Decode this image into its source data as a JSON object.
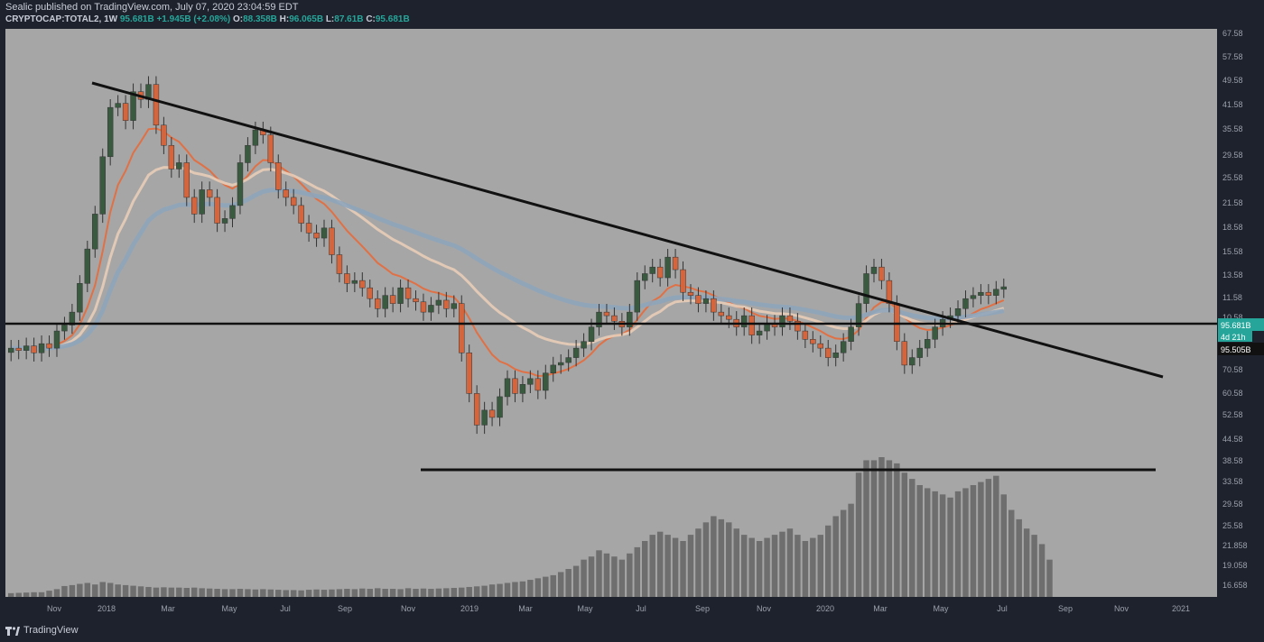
{
  "header": {
    "published": "Sealic published on TradingView.com, July 07, 2020 23:04:59 EDT",
    "symbol": "CRYPTOCAP:TOTAL2, 1W",
    "last": "95.681B",
    "change": "+1.945B (+2.08%)",
    "o_label": "O:",
    "o": "88.358B",
    "h_label": "H:",
    "h": "96.065B",
    "l_label": "L:",
    "l": "87.61B",
    "c_label": "C:",
    "c": "95.681B"
  },
  "footer": {
    "brand": "TradingView"
  },
  "colors": {
    "plot_bg": "#a6a6a6",
    "axis_bg": "#1e222d",
    "up": "#3a5a40",
    "down": "#d4653c",
    "wick": "#333333",
    "ema_fast": "#e86a3a",
    "ema_mid": "#e8cdb8",
    "ema_slow": "#8fa5bb",
    "volume": "#6e6e6e",
    "trendline": "#111111"
  },
  "chart_data": {
    "type": "candlestick",
    "y_scale": "log",
    "ylim": [
      15.6,
      77.0
    ],
    "y_ticks": [
      "67.58",
      "57.58",
      "49.58",
      "41.58",
      "35.58",
      "29.58",
      "25.58",
      "21.58",
      "18.58",
      "15.58",
      "13.58",
      "11.58",
      "10.58",
      "95.681B",
      "95.505B",
      "70.58",
      "60.58",
      "52.58",
      "44.58",
      "38.58",
      "33.58",
      "29.58",
      "25.58",
      "21.858",
      "19.058",
      "16.658"
    ],
    "x_ticks": [
      "Nov",
      "2018",
      "Mar",
      "May",
      "Jul",
      "Sep",
      "Nov",
      "2019",
      "Mar",
      "May",
      "Jul",
      "Sep",
      "Nov",
      "2020",
      "Mar",
      "May",
      "Jul",
      "Sep",
      "Nov",
      "2021"
    ],
    "price_label": "95.681B",
    "countdown": "4d 21h",
    "ma_label": "95.505B",
    "closes": [
      62,
      61,
      63,
      60,
      64,
      62,
      70,
      73,
      80,
      98,
      125,
      160,
      240,
      340,
      350,
      310,
      380,
      360,
      400,
      300,
      260,
      220,
      230,
      180,
      160,
      190,
      180,
      150,
      155,
      170,
      230,
      260,
      290,
      280,
      230,
      190,
      180,
      170,
      150,
      140,
      135,
      145,
      120,
      105,
      98,
      100,
      95,
      88,
      82,
      90,
      85,
      95,
      88,
      86,
      80,
      84,
      87,
      82,
      85,
      60,
      45,
      36,
      40,
      38,
      44,
      50,
      45,
      48,
      50,
      46,
      52,
      55,
      56,
      58,
      62,
      65,
      72,
      80,
      78,
      75,
      72,
      80,
      100,
      105,
      110,
      102,
      118,
      108,
      92,
      90,
      85,
      88,
      80,
      78,
      76,
      72,
      78,
      68,
      70,
      74,
      72,
      78,
      75,
      70,
      66,
      64,
      62,
      58,
      60,
      65,
      72,
      85,
      105,
      110,
      100,
      85,
      65,
      55,
      58,
      62,
      66,
      72,
      76,
      78,
      82,
      88,
      90,
      92,
      90,
      94,
      95.681
    ],
    "volume": [
      1.2,
      1.3,
      1.4,
      1.5,
      1.5,
      2.0,
      2.5,
      3.5,
      3.8,
      4.2,
      4.5,
      4.0,
      4.8,
      4.5,
      4.0,
      3.8,
      3.6,
      3.4,
      3.2,
      3.0,
      3.1,
      3.0,
      3.0,
      2.9,
      3.0,
      2.8,
      2.7,
      2.6,
      2.5,
      2.5,
      2.6,
      2.5,
      2.4,
      2.5,
      2.4,
      2.3,
      2.2,
      2.2,
      2.1,
      2.3,
      2.4,
      2.3,
      2.4,
      2.5,
      2.6,
      2.5,
      2.7,
      2.6,
      2.8,
      2.6,
      2.6,
      2.5,
      2.8,
      2.6,
      2.7,
      2.6,
      2.7,
      2.8,
      2.9,
      3.0,
      3.2,
      3.4,
      3.6,
      4.0,
      4.2,
      4.5,
      4.8,
      5.0,
      5.5,
      6.0,
      6.5,
      7.0,
      8.0,
      9.0,
      10,
      12,
      13,
      15,
      14,
      13,
      12,
      14,
      16,
      18,
      20,
      21,
      20,
      19,
      18,
      20,
      22,
      24,
      26,
      25,
      24,
      22,
      20,
      19,
      18,
      19,
      20,
      21,
      22,
      20,
      18,
      19,
      20,
      23,
      26,
      28,
      30,
      40,
      44,
      44,
      45,
      44,
      43,
      40,
      38,
      36,
      35,
      34,
      33,
      32,
      34,
      35,
      36,
      37,
      38,
      39,
      33,
      28,
      25,
      22,
      20,
      17,
      12
    ]
  }
}
